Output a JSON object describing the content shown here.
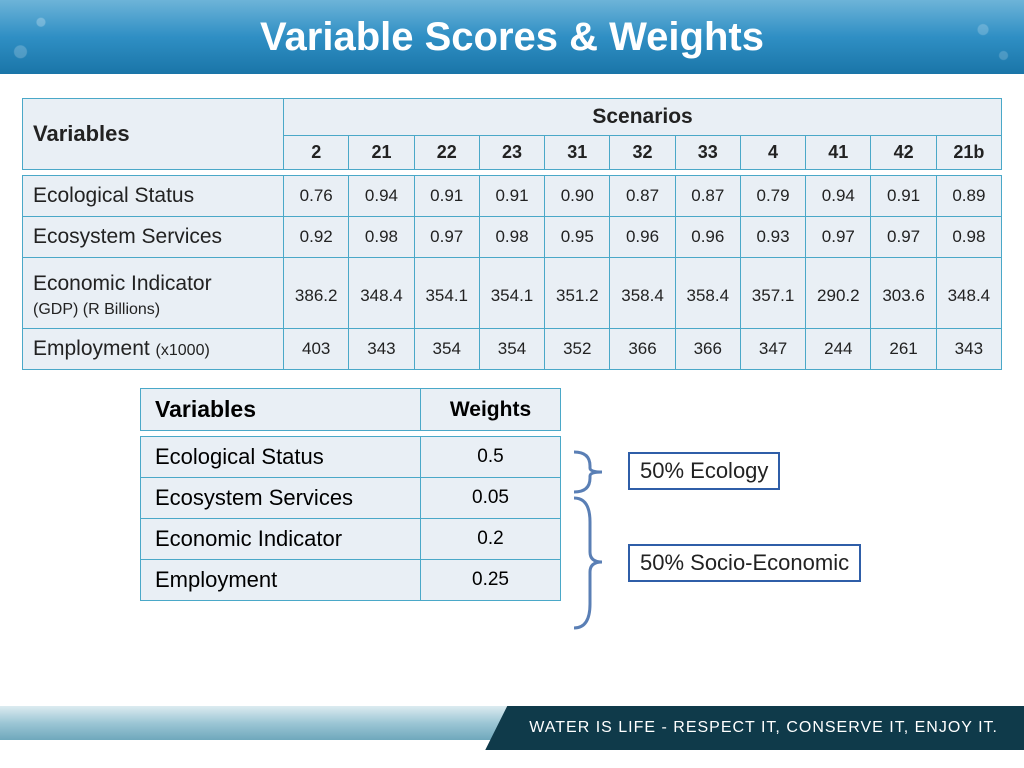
{
  "header": {
    "title": "Variable Scores & Weights"
  },
  "scores": {
    "variables_header": "Variables",
    "scenarios_header": "Scenarios",
    "scenario_columns": [
      "2",
      "21",
      "22",
      "23",
      "31",
      "32",
      "33",
      "4",
      "41",
      "42",
      "21b"
    ],
    "rows": [
      {
        "label": "Ecological  Status",
        "sub": "",
        "values": [
          "0.76",
          "0.94",
          "0.91",
          "0.91",
          "0.90",
          "0.87",
          "0.87",
          "0.79",
          "0.94",
          "0.91",
          "0.89"
        ]
      },
      {
        "label": "Ecosystem Services",
        "sub": "",
        "values": [
          "0.92",
          "0.98",
          "0.97",
          "0.98",
          "0.95",
          "0.96",
          "0.96",
          "0.93",
          "0.97",
          "0.97",
          "0.98"
        ]
      },
      {
        "label": "Economic Indicator",
        "sub": "(GDP)  (R Billions)",
        "values": [
          "386.2",
          "348.4",
          "354.1",
          "354.1",
          "351.2",
          "358.4",
          "358.4",
          "357.1",
          "290.2",
          "303.6",
          "348.4"
        ]
      },
      {
        "label": "Employment ",
        "sub": "(x1000)",
        "values": [
          "403",
          "343",
          "354",
          "354",
          "352",
          "366",
          "366",
          "347",
          "244",
          "261",
          "343"
        ]
      }
    ]
  },
  "weights": {
    "variables_header": "Variables",
    "weights_header": "Weights",
    "rows": [
      {
        "label": "Ecological  Status",
        "weight": "0.5"
      },
      {
        "label": "Ecosystem Services",
        "weight": "0.05"
      },
      {
        "label": "Economic Indicator",
        "weight": "0.2"
      },
      {
        "label": "Employment",
        "weight": "0.25"
      }
    ]
  },
  "annotations": {
    "ecology": "50% Ecology",
    "socio": "50% Socio-Economic"
  },
  "footer": {
    "tagline": "WATER IS LIFE - RESPECT IT, CONSERVE IT, ENJOY IT."
  },
  "colors": {
    "header_gradient": [
      "#6db4d8",
      "#2f8fc4",
      "#1a75a8"
    ],
    "cell_bg": "#e9eff5",
    "cell_border": "#4aa8c8",
    "anno_border": "#2f5ea8",
    "bracket": "#5a7fb5",
    "footer_gradient": [
      "#dcebf0",
      "#9cc6d5",
      "#6fa8bc"
    ],
    "ribbon_bg": "#0f3a4a"
  }
}
